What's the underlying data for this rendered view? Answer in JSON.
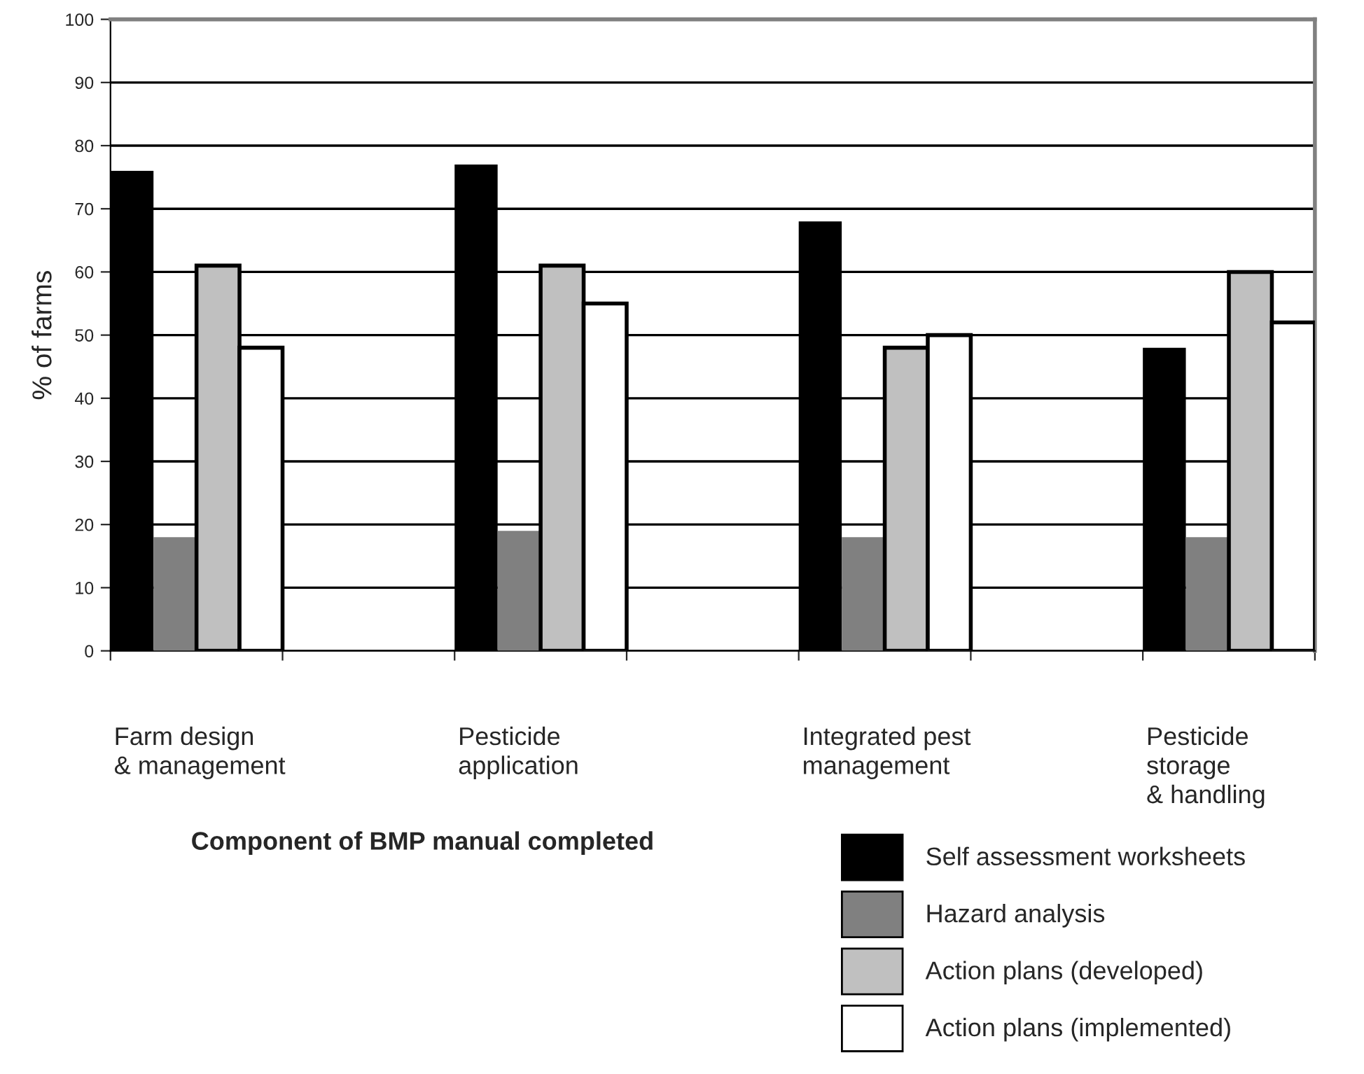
{
  "chart_data": {
    "type": "bar",
    "categories": [
      "Farm design\n& management",
      "Pesticide\napplication",
      "Integrated pest\nmanagement",
      "Pesticide\nstorage\n& handling"
    ],
    "series": [
      {
        "name": "Self assessment worksheets",
        "color": "#000000",
        "values": [
          76,
          77,
          68,
          48
        ]
      },
      {
        "name": "Hazard analysis",
        "color": "#808080",
        "values": [
          18,
          19,
          18,
          18
        ]
      },
      {
        "name": "Action plans (developed)",
        "color": "#c0c0c0",
        "values": [
          61,
          61,
          48,
          60
        ]
      },
      {
        "name": "Action plans (implemented)",
        "color": "#ffffff",
        "values": [
          48,
          55,
          50,
          52
        ]
      }
    ],
    "ylabel": "% of farms",
    "legend_title": "Component of BMP manual completed",
    "ylim": [
      0,
      100
    ],
    "yticks": [
      0,
      10,
      20,
      30,
      40,
      50,
      60,
      70,
      80,
      90,
      100
    ],
    "grid": "y",
    "legend": "bottom right"
  }
}
